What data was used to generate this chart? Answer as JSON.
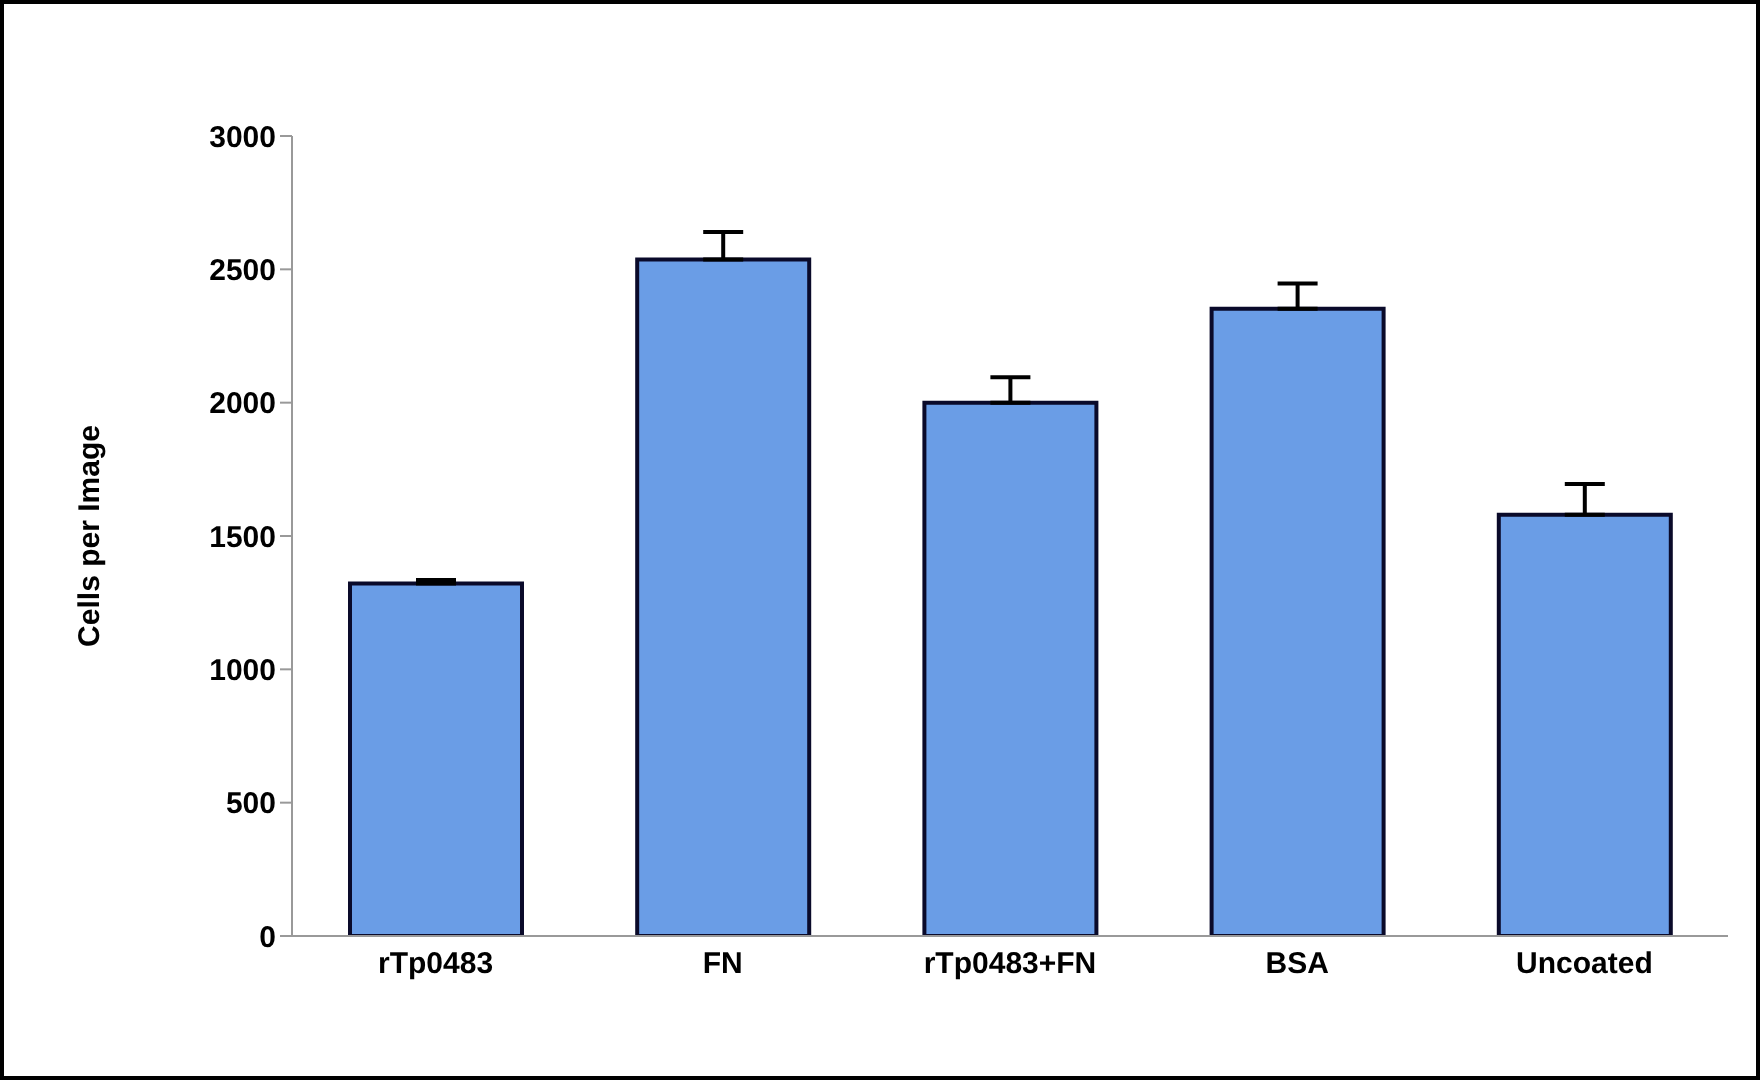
{
  "chart_data": {
    "type": "bar",
    "ylabel": "Cells per Image",
    "categories": [
      "rTp0483",
      "FN",
      "rTp0483+FN",
      "BSA",
      "Uncoated"
    ],
    "values": [
      1322,
      2537,
      2000,
      2352,
      1580
    ],
    "errors": [
      [
        1322,
        1335
      ],
      [
        2537,
        2640
      ],
      [
        2000,
        2095
      ],
      [
        2352,
        2447
      ],
      [
        1580,
        1695
      ]
    ],
    "color": "#6a9de6",
    "ylim": [
      0,
      3000
    ],
    "yticks": [
      0,
      500,
      1000,
      1500,
      2000,
      2500,
      3000
    ],
    "grid": false,
    "legend": false
  }
}
